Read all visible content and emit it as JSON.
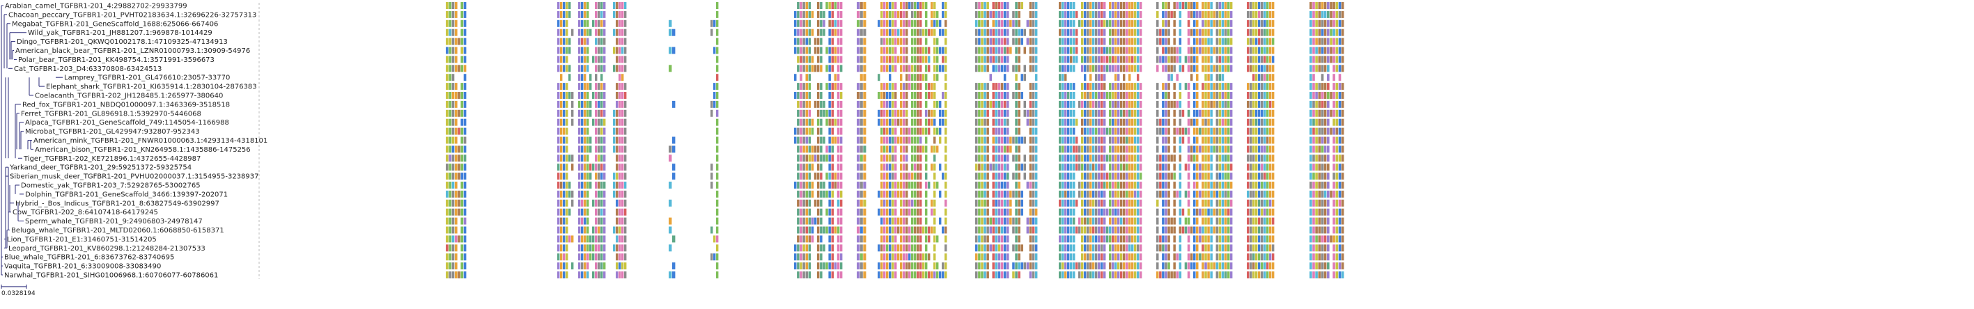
{
  "figure_type": "phylogenetic tree with multiple sequence alignment",
  "scale_bar_label": "0.0328194",
  "taxa": [
    "Arabian_camel_TGFBR1-201_4:29882702-29933799",
    "Chacoan_peccary_TGFBR1-201_PVHT02183634.1:32696226-32757313",
    "Megabat_TGFBR1-201_GeneScaffold_1688:625066-667406",
    "Wild_yak_TGFBR1-201_JH881207.1:969878-1014429",
    "Dingo_TGFBR1-201_QKWQ01002178.1:47109325-47134913",
    "American_black_bear_TGFBR1-201_LZNR01000793.1:30909-54976",
    "Polar_bear_TGFBR1-201_KK498754.1:3571991-3596673",
    "Cat_TGFBR1-203_D4:63370808-63424513",
    "Lamprey_TGFBR1-201_GL476610:23057-33770",
    "Elephant_shark_TGFBR1-201_KI635914.1:2830104-2876383",
    "Coelacanth_TGFBR1-202_JH128485.1:265977-380640",
    "Red_fox_TGFBR1-201_NBDQ01000097.1:3463369-3518518",
    "Ferret_TGFBR1-201_GL896918.1:5392970-5446068",
    "Alpaca_TGFBR1-201_GeneScaffold_749:1145054-1166988",
    "Microbat_TGFBR1-201_GL429947:932807-952343",
    "American_mink_TGFBR1-201_FNWR01000063.1:4293134-4318101",
    "American_bison_TGFBR1-201_KN264958.1:1435886-1475256",
    "Tiger_TGFBR1-202_KE721896.1:4372655-4428987",
    "Yarkand_deer_TGFBR1-201_29:59251372-59325754",
    "Siberian_musk_deer_TGFBR1-201_PVHU02000037.1:3154955-3238937",
    "Domestic_yak_TGFBR1-203_7:52928765-53002765",
    "Dolphin_TGFBR1-201_GeneScaffold_3466:139397-202071",
    "Hybrid_-_Bos_Indicus_TGFBR1-201_8:63827549-63902997",
    "Cow_TGFBR1-202_8:64107418-64179245",
    "Sperm_whale_TGFBR1-201_9:24906803-24978147",
    "Beluga_whale_TGFBR1-201_MLTD02060.1:6068850-6158371",
    "Lion_TGFBR1-201_E1:31460751-31514205",
    "Leopard_TGFBR1-201_KV860298.1:21248284-21307533",
    "Blue_whale_TGFBR1-201_6:83673762-83740695",
    "Vaquita_TGFBR1-201_6:33009008-33083490",
    "Narwhal_TGFBR1-201_SIHG01006968.1:60706077-60786061"
  ],
  "palette": [
    "#e8a33a",
    "#7fbf5a",
    "#56b9d8",
    "#9a7fd1",
    "#d95f5f",
    "#c9c441",
    "#3f7fd9",
    "#e07bb5",
    "#5fa887",
    "#b07c4e",
    "#8c8c8c"
  ],
  "line_color": "#2b2b7a"
}
